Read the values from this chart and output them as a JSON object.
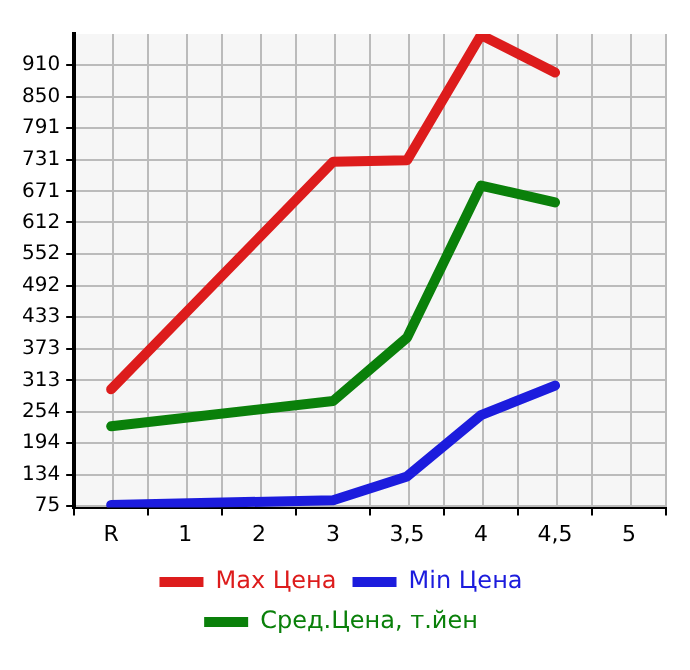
{
  "chart_data": {
    "type": "line",
    "categories": [
      "R",
      "1",
      "2",
      "3",
      "3,5",
      "4",
      "4,5",
      "5"
    ],
    "series": [
      {
        "name": "Max Цена",
        "color": "#dd1c1c",
        "values": [
          296,
          null,
          null,
          727,
          730,
          967,
          896,
          null
        ]
      },
      {
        "name": "Min Цена",
        "color": "#1c1cdd",
        "values": [
          77,
          null,
          null,
          86,
          131,
          247,
          303,
          null
        ]
      },
      {
        "name": "Сред.Цена, т.йен",
        "color": "#0a800a",
        "values": [
          226,
          null,
          null,
          274,
          394,
          682,
          650,
          null
        ]
      }
    ],
    "ylim": [
      72,
      969
    ],
    "yticks": [
      75,
      134,
      194,
      254,
      313,
      373,
      433,
      492,
      552,
      612,
      671,
      731,
      791,
      850,
      910
    ],
    "grid": true,
    "legend": "bottom",
    "marker": "none",
    "line_style": "solid"
  }
}
